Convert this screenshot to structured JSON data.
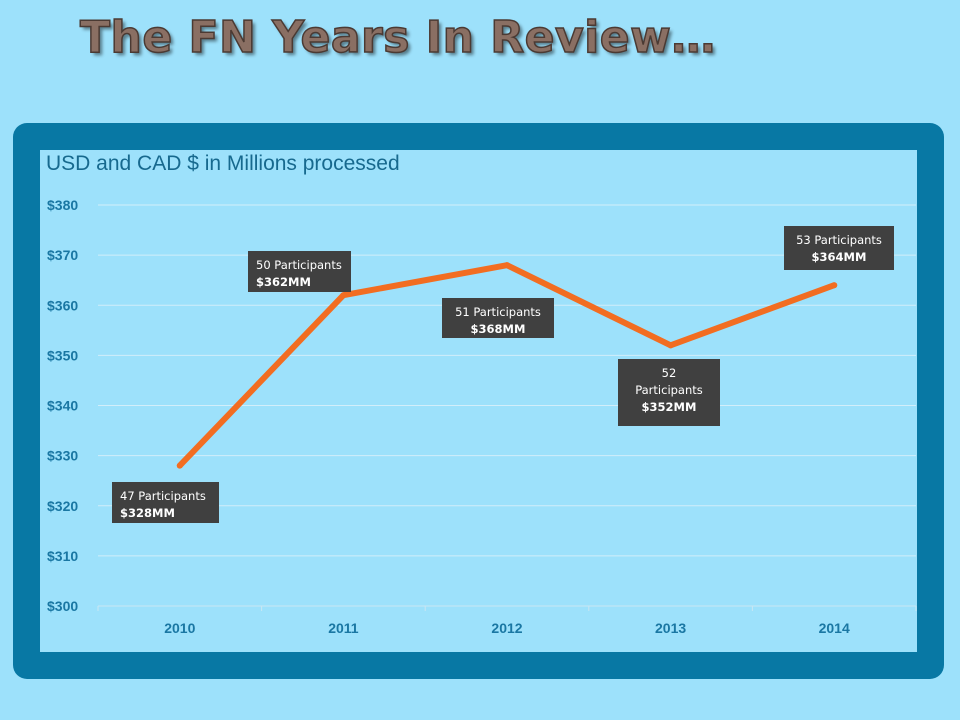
{
  "slide_title": "The FN Years In Review…",
  "chart_data": {
    "type": "line",
    "title": "USD and CAD $ in Millions processed",
    "xlabel": "",
    "ylabel": "",
    "categories": [
      "2010",
      "2011",
      "2012",
      "2013",
      "2014"
    ],
    "series": [
      {
        "values": [
          328,
          362,
          368,
          352,
          364
        ],
        "color": "#f26d21"
      }
    ],
    "ylim": [
      300,
      380
    ],
    "yticks": [
      {
        "value": 300,
        "label": "$300"
      },
      {
        "value": 310,
        "label": "$310"
      },
      {
        "value": 320,
        "label": "$320"
      },
      {
        "value": 330,
        "label": "$330"
      },
      {
        "value": 340,
        "label": "$340"
      },
      {
        "value": 350,
        "label": "$350"
      },
      {
        "value": 360,
        "label": "$360"
      },
      {
        "value": 370,
        "label": "$370"
      },
      {
        "value": 380,
        "label": "$380"
      }
    ],
    "grid": true,
    "legend": "none",
    "annotations": [
      {
        "participants": "47 Participants",
        "amount": "$328MM"
      },
      {
        "participants": "50 Participants",
        "amount": "$362MM"
      },
      {
        "participants": "51 Participants",
        "amount": "$368MM"
      },
      {
        "participants_line1": "52",
        "participants_line2": "Participants",
        "amount": "$352MM"
      },
      {
        "participants": "53 Participants",
        "amount": "$364MM"
      }
    ]
  },
  "colors": {
    "background": "#9de1fb",
    "frame": "#0878a4",
    "line": "#f26d21",
    "tick_text": "#1a77a3",
    "callout_bg": "#404040"
  }
}
